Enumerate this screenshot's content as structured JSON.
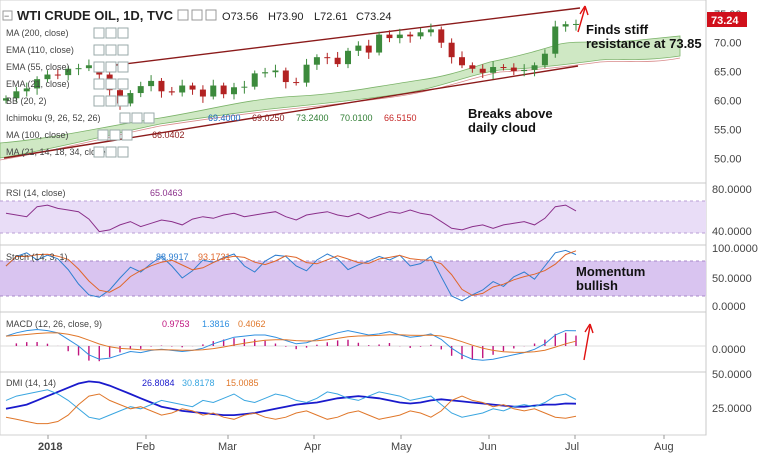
{
  "header": {
    "title": "WTI CRUDE OIL, 1D, TVC",
    "ohlc": [
      {
        "key": "O",
        "value": "73.56"
      },
      {
        "key": "H",
        "value": "73.90"
      },
      {
        "key": "L",
        "value": "72.61"
      },
      {
        "key": "C",
        "value": "73.24"
      }
    ],
    "last_price": "73.24"
  },
  "price_indicators": [
    {
      "label": "MA (200, close)",
      "values": []
    },
    {
      "label": "EMA (110, close)",
      "values": []
    },
    {
      "label": "EMA (55, close)",
      "values": []
    },
    {
      "label": "EMA (21, close)",
      "values": []
    },
    {
      "label": "BB (20, 2)",
      "values": []
    },
    {
      "label": "Ichimoku (9, 26, 52, 26)",
      "values": [
        "69.4000",
        "69.0250",
        "73.2400",
        "70.0100",
        "66.5150"
      ]
    },
    {
      "label": "MA (100, close)",
      "values": [
        "66.0402"
      ]
    },
    {
      "label": "MA (21, 14, 18, 34, close)",
      "values": []
    }
  ],
  "annotations": {
    "resistance": "Finds stiff resistance at 73.85",
    "cloud": "Breaks above daily cloud",
    "momentum": "Momentum bullish"
  },
  "panes": {
    "rsi": {
      "label": "RSI (14, close)",
      "values": [
        "65.0463"
      ],
      "ticks": [
        "80.0000",
        "40.0000"
      ]
    },
    "stoch": {
      "label": "Stoch (14, 3, 1)",
      "values": [
        "88.9917",
        "93.1731"
      ],
      "ticks": [
        "100.0000",
        "50.0000",
        "0.0000"
      ]
    },
    "macd": {
      "label": "MACD (12, 26, close, 9)",
      "values": [
        "0.9753",
        "1.3816",
        "0.4062"
      ],
      "ticks": [
        "0.0000"
      ]
    },
    "dmi": {
      "label": "DMI (14, 14)",
      "values": [
        "26.8084",
        "30.8178",
        "15.0085"
      ],
      "ticks": [
        "50.0000",
        "25.0000"
      ]
    }
  },
  "price_axis_ticks": [
    "75.00",
    "70.00",
    "65.00",
    "60.00",
    "55.00",
    "50.00"
  ],
  "time_axis": [
    "2018",
    "Feb",
    "Mar",
    "Apr",
    "May",
    "Jun",
    "Jul",
    "Aug"
  ],
  "colors": {
    "up": "#3c8a3c",
    "down": "#b22222",
    "channel": "#8b1a1a",
    "cloud": "#cfe8c4",
    "rsi_band": "#e9ddf7",
    "stoch_band": "#d9c4f0",
    "last_price_bg": "#d0101b",
    "arrow": "#e01010"
  },
  "chart_data": {
    "type": "candlestick",
    "xlabels": [
      "2018",
      "Feb",
      "Mar",
      "Apr",
      "May",
      "Jun",
      "Jul",
      "Aug"
    ],
    "ylim": [
      48,
      76
    ],
    "close_series": [
      60.4,
      61.6,
      62.1,
      63.7,
      64.5,
      64.4,
      65.5,
      65.6,
      66.1,
      64.5,
      61.8,
      59.5,
      61.3,
      62.5,
      63.4,
      61.6,
      61.4,
      62.6,
      61.9,
      60.7,
      62.6,
      61.1,
      62.3,
      62.4,
      64.7,
      64.9,
      65.2,
      63.2,
      63.1,
      66.2,
      67.5,
      67.4,
      66.3,
      68.6,
      69.5,
      68.3,
      71.4,
      70.8,
      71.4,
      71.1,
      71.8,
      72.3,
      70.0,
      67.5,
      66.1,
      65.5,
      64.8,
      65.8,
      65.7,
      65.1,
      65.3,
      66.1,
      68.1,
      72.8,
      73.2,
      73.24
    ]
  }
}
